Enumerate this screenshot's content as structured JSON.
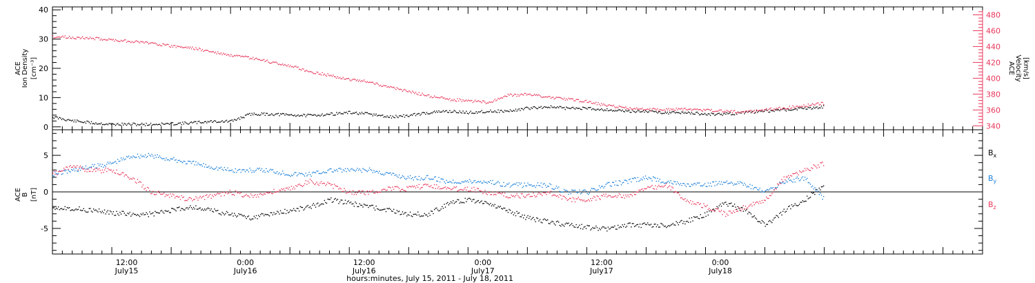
{
  "chart_data": [
    {
      "type": "scatter",
      "panel": "density-velocity",
      "ylabel_left": [
        "ACE",
        "Ion Density",
        "[cm⁻³]"
      ],
      "ylabel_right": [
        "ACE",
        "Velocity",
        "[km/s]"
      ],
      "ylim_left": [
        -1,
        41
      ],
      "ylim_right": [
        335,
        490
      ],
      "yticks_left": [
        "0",
        "10",
        "20",
        "30",
        "40"
      ],
      "yticks_right": [
        "340",
        "360",
        "380",
        "400",
        "420",
        "440",
        "460",
        "480"
      ],
      "x_hours": [
        0,
        2,
        4,
        6,
        8,
        10,
        12,
        14,
        16,
        18,
        20,
        22,
        24,
        26,
        28,
        30,
        32,
        34,
        36,
        38,
        40,
        42,
        44,
        46,
        48,
        50,
        52,
        54,
        56,
        58,
        60,
        62,
        64,
        66,
        68,
        70,
        72,
        74,
        76,
        78
      ],
      "series": [
        {
          "name": "Ion Density",
          "axis": "left",
          "color": "#000000",
          "values": [
            3.5,
            2.2,
            1.5,
            1.0,
            1.0,
            1.0,
            1.2,
            1.5,
            2.0,
            2.0,
            4.5,
            4.5,
            4.2,
            4.0,
            4.5,
            5.0,
            4.5,
            3.5,
            4.0,
            5.0,
            5.5,
            5.0,
            5.5,
            5.5,
            6.5,
            7.0,
            6.5,
            6.5,
            6.0,
            5.5,
            5.5,
            5.0,
            5.0,
            4.5,
            4.5,
            5.0,
            5.5,
            6.0,
            6.5,
            7.0
          ]
        },
        {
          "name": "Velocity",
          "axis": "right",
          "color": "#e8365a",
          "values": [
            453,
            452,
            451,
            449,
            447,
            445,
            441,
            439,
            434,
            429,
            426,
            421,
            416,
            409,
            404,
            399,
            396,
            389,
            384,
            378,
            374,
            372,
            370,
            379,
            380,
            377,
            374,
            371,
            366,
            363,
            361,
            361,
            362,
            360,
            359,
            358,
            361,
            363,
            366,
            369
          ]
        }
      ]
    },
    {
      "type": "scatter",
      "panel": "magnetic-field",
      "ylabel_left": [
        "ACE",
        "B",
        "[nT]"
      ],
      "ylim": [
        -8.5,
        8.5
      ],
      "yticks": [
        "-5",
        "0",
        "5"
      ],
      "legend": [
        "Bₓ",
        "Bᵧ",
        "B_z"
      ],
      "legend_placement": "right",
      "zero_line": true,
      "x_hours": [
        0,
        2,
        4,
        6,
        8,
        10,
        12,
        14,
        16,
        18,
        20,
        22,
        24,
        26,
        28,
        30,
        32,
        34,
        36,
        38,
        40,
        42,
        44,
        46,
        48,
        50,
        52,
        54,
        56,
        58,
        60,
        62,
        64,
        66,
        68,
        70,
        72,
        74,
        76,
        78
      ],
      "series": [
        {
          "name": "Bx",
          "label": "B",
          "subscript": "x",
          "color": "#000000",
          "values": [
            -2.0,
            -2.2,
            -2.5,
            -2.8,
            -3.0,
            -3.0,
            -2.5,
            -2.0,
            -2.5,
            -3.0,
            -3.5,
            -3.0,
            -2.5,
            -2.0,
            -1.0,
            -1.5,
            -2.0,
            -2.5,
            -3.0,
            -3.0,
            -1.5,
            -1.0,
            -1.5,
            -2.5,
            -3.5,
            -4.0,
            -4.5,
            -4.8,
            -5.0,
            -4.5,
            -4.5,
            -4.5,
            -4.0,
            -3.0,
            -1.5,
            -2.5,
            -4.5,
            -2.5,
            -1.0,
            1.0
          ]
        },
        {
          "name": "By",
          "label": "B",
          "subscript": "y",
          "color": "#1a7fd8",
          "values": [
            2.5,
            3.0,
            3.5,
            4.0,
            5.0,
            5.0,
            4.5,
            4.0,
            3.5,
            3.0,
            3.0,
            3.0,
            2.5,
            2.5,
            3.0,
            3.0,
            3.0,
            2.5,
            2.0,
            2.0,
            1.5,
            1.5,
            1.5,
            1.0,
            1.0,
            1.0,
            0.0,
            0.0,
            1.0,
            1.5,
            2.0,
            1.5,
            1.0,
            1.0,
            1.5,
            1.0,
            0.0,
            1.5,
            2.0,
            -1.0
          ]
        },
        {
          "name": "Bz",
          "label": "B",
          "subscript": "z",
          "color": "#e8365a",
          "values": [
            2.5,
            3.5,
            3.0,
            3.0,
            2.0,
            0.0,
            -0.5,
            -1.0,
            -0.5,
            0.0,
            -0.5,
            0.0,
            0.5,
            1.5,
            1.0,
            0.0,
            0.0,
            0.5,
            0.5,
            1.0,
            0.5,
            0.5,
            0.0,
            -0.5,
            -0.5,
            0.0,
            -1.0,
            -1.0,
            -0.5,
            -0.5,
            0.5,
            1.0,
            -1.0,
            -2.0,
            -3.0,
            -2.0,
            -1.0,
            2.0,
            3.0,
            4.0
          ]
        }
      ]
    }
  ],
  "x_axis": {
    "range_hours": [
      0,
      94
    ],
    "title": "hours:minutes, July 15, 2011 - July 18, 2011",
    "ticks": [
      {
        "time": "12:00",
        "date": "July15"
      },
      {
        "time": "0:00",
        "date": "July16"
      },
      {
        "time": "12:00",
        "date": "July16"
      },
      {
        "time": "0:00",
        "date": "July17"
      },
      {
        "time": "12:00",
        "date": "July17"
      },
      {
        "time": "0:00",
        "date": "July18"
      }
    ]
  }
}
